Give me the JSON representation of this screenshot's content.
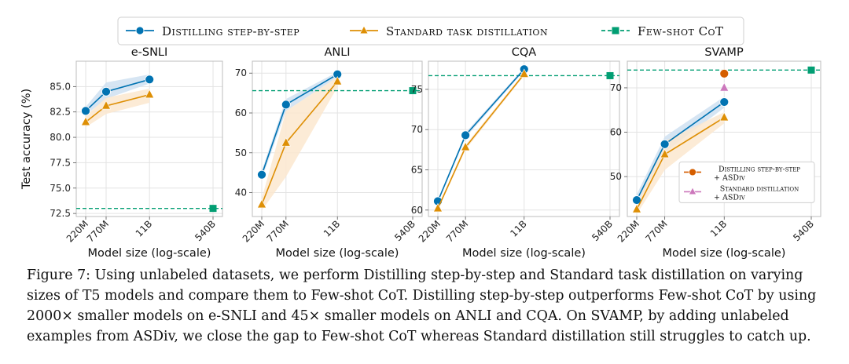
{
  "legend": {
    "items": [
      {
        "label": "Distilling step-by-step",
        "color": "#0173b2",
        "marker": "circle"
      },
      {
        "label": "Standard task distillation",
        "color": "#de8f05",
        "marker": "triangle"
      },
      {
        "label": "Few-shot CoT",
        "color": "#029e73",
        "marker": "square"
      }
    ]
  },
  "shared": {
    "x_tick_labels": [
      "220M",
      "770M",
      "11B",
      "540B"
    ],
    "x_values": [
      220,
      770,
      11000,
      540000
    ],
    "x_scale": "log",
    "xlabel": "Model size (log-scale)",
    "ylabel": "Test accuracy (%)"
  },
  "chart_data": [
    {
      "type": "line",
      "title": "e-SNLI",
      "xlabel": "Model size (log-scale)",
      "ylabel": "Test accuracy (%)",
      "ylim": [
        72.2,
        87.5
      ],
      "yticks": [
        72.5,
        75.0,
        77.5,
        80.0,
        82.5,
        85.0
      ],
      "ytick_labels": [
        "72.5",
        "75.0",
        "77.5",
        "80.0",
        "82.5",
        "85.0"
      ],
      "grid": true,
      "series": [
        {
          "name": "Distilling step-by-step",
          "x": [
            "220M",
            "770M",
            "11B"
          ],
          "values": [
            82.6,
            84.5,
            85.7
          ],
          "band_low": [
            82.2,
            83.8,
            85.3
          ],
          "band_high": [
            83.0,
            85.4,
            86.2
          ]
        },
        {
          "name": "Standard task distillation",
          "x": [
            "220M",
            "770M",
            "11B"
          ],
          "values": [
            81.5,
            83.1,
            84.2
          ],
          "band_low": [
            81.0,
            82.3,
            83.4
          ],
          "band_high": [
            82.1,
            83.9,
            84.8
          ]
        },
        {
          "name": "Few-shot CoT",
          "x": [
            "540B"
          ],
          "values": [
            73.0
          ],
          "reference_line": true
        }
      ]
    },
    {
      "type": "line",
      "title": "ANLI",
      "xlabel": "Model size (log-scale)",
      "ylim": [
        34,
        73
      ],
      "yticks": [
        40,
        50,
        60,
        70
      ],
      "ytick_labels": [
        "40",
        "50",
        "60",
        "70"
      ],
      "grid": true,
      "series": [
        {
          "name": "Distilling step-by-step",
          "x": [
            "220M",
            "770M",
            "11B"
          ],
          "values": [
            44.5,
            62.1,
            69.7
          ],
          "band_low": [
            43.5,
            60.5,
            69.0
          ],
          "band_high": [
            45.5,
            63.5,
            70.3
          ]
        },
        {
          "name": "Standard task distillation",
          "x": [
            "220M",
            "770M",
            "11B"
          ],
          "values": [
            37.0,
            52.5,
            67.9
          ],
          "band_low": [
            35.5,
            44.0,
            66.5
          ],
          "band_high": [
            38.5,
            60.5,
            69.0
          ]
        },
        {
          "name": "Few-shot CoT",
          "x": [
            "540B"
          ],
          "values": [
            65.6
          ],
          "reference_line": true
        }
      ]
    },
    {
      "type": "line",
      "title": "CQA",
      "xlabel": "Model size (log-scale)",
      "ylim": [
        59.2,
        78.5
      ],
      "yticks": [
        60,
        65,
        70,
        75
      ],
      "ytick_labels": [
        "60",
        "65",
        "70",
        "75"
      ],
      "grid": true,
      "series": [
        {
          "name": "Distilling step-by-step",
          "x": [
            "220M",
            "770M",
            "11B"
          ],
          "values": [
            61.1,
            69.3,
            77.5
          ],
          "band_low": [
            60.9,
            69.0,
            77.3
          ],
          "band_high": [
            61.3,
            69.6,
            77.7
          ]
        },
        {
          "name": "Standard task distillation",
          "x": [
            "220M",
            "770M",
            "11B"
          ],
          "values": [
            60.2,
            67.8,
            76.9
          ],
          "band_low": [
            60.0,
            67.5,
            76.7
          ],
          "band_high": [
            60.4,
            68.1,
            77.1
          ]
        },
        {
          "name": "Few-shot CoT",
          "x": [
            "540B"
          ],
          "values": [
            76.7
          ],
          "reference_line": true
        }
      ]
    },
    {
      "type": "line",
      "title": "SVAMP",
      "xlabel": "Model size (log-scale)",
      "ylim": [
        41,
        76
      ],
      "yticks": [
        50,
        60,
        70
      ],
      "ytick_labels": [
        "50",
        "60",
        "70"
      ],
      "grid": true,
      "series": [
        {
          "name": "Distilling step-by-step",
          "x": [
            "220M",
            "770M",
            "11B"
          ],
          "values": [
            44.7,
            57.3,
            66.8
          ],
          "band_low": [
            43.5,
            55.5,
            65.5
          ],
          "band_high": [
            46.0,
            59.0,
            68.0
          ]
        },
        {
          "name": "Standard task distillation",
          "x": [
            "220M",
            "770M",
            "11B"
          ],
          "values": [
            42.6,
            55.0,
            63.3
          ],
          "band_low": [
            41.5,
            51.5,
            62.0
          ],
          "band_high": [
            43.7,
            58.0,
            64.5
          ]
        },
        {
          "name": "Few-shot CoT",
          "x": [
            "540B"
          ],
          "values": [
            74.0
          ],
          "reference_line": true
        },
        {
          "name": "Distilling step-by-step + ASDiv",
          "x": [
            "11B"
          ],
          "values": [
            73.2
          ]
        },
        {
          "name": "Standard distillation + ASDiv",
          "x": [
            "11B"
          ],
          "values": [
            70.0
          ]
        }
      ],
      "inset_legend": [
        {
          "line1": "Distilling step-by-step",
          "line2": "+ ASDiv",
          "color": "#d55e00",
          "marker": "circle"
        },
        {
          "line1": "Standard distillation",
          "line2": "+ ASDiv",
          "color": "#cc78bc",
          "marker": "triangle"
        }
      ]
    }
  ],
  "caption": {
    "text": "Figure 7: Using unlabeled datasets, we perform Distilling step-by-step and Standard task distillation on varying sizes of T5 models and compare them to Few-shot CoT. Distilling step-by-step outperforms Few-shot CoT by using 2000× smaller models on e-SNLI and 45× smaller models on ANLI and CQA. On SVAMP, by adding unlabeled examples from ASDiv, we close the gap to Few-shot CoT whereas Standard distillation still struggles to catch up."
  },
  "colors": {
    "blue": "#0173b2",
    "blue_band": "#cfe0f1",
    "orange": "#de8f05",
    "orange_band": "#fbe8cf",
    "green": "#029e73",
    "red": "#d55e00",
    "pink": "#cc78bc",
    "grid": "#e3e3e3",
    "axis": "#bcbcbc"
  }
}
